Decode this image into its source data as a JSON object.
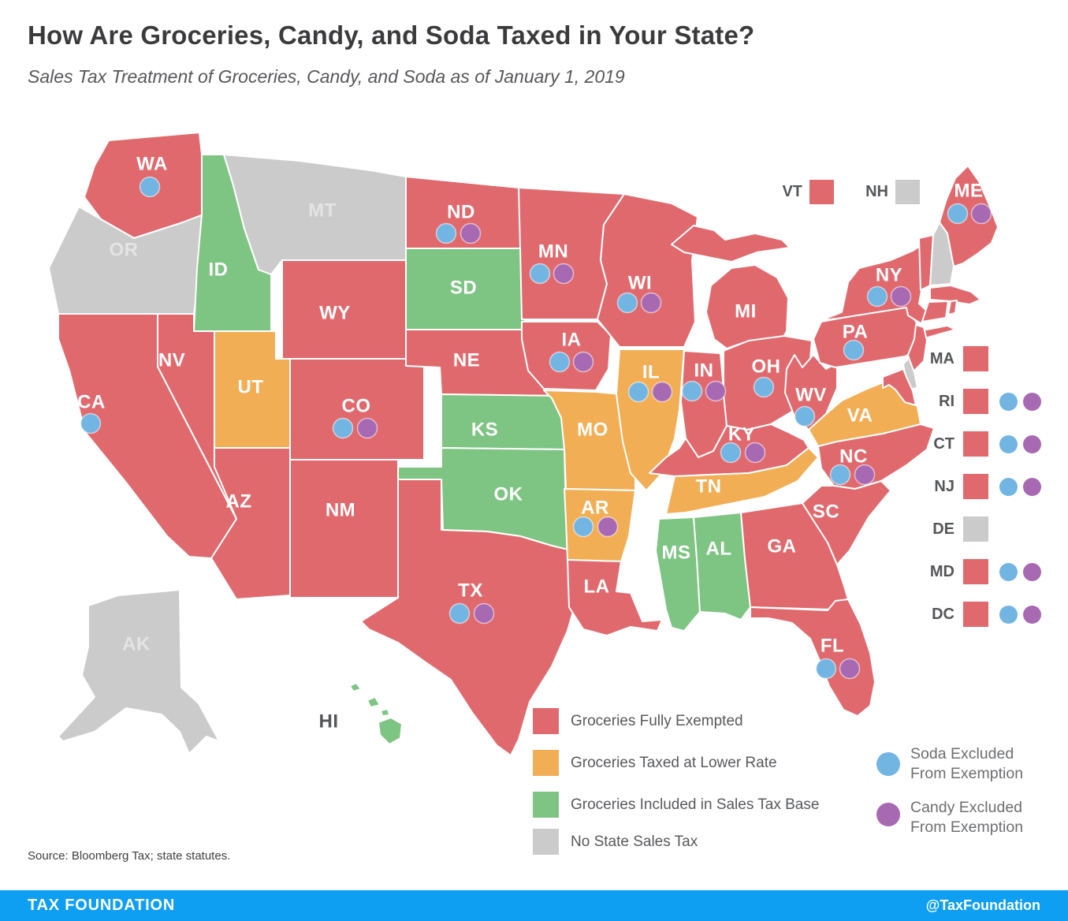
{
  "title": "How Are Groceries, Candy, and Soda Taxed in Your State?",
  "subtitle": "Sales Tax Treatment of Groceries, Candy, and Soda as of January 1, 2019",
  "colors": {
    "exempt": "#e0696e",
    "lower_rate": "#f2ae55",
    "included": "#7ec483",
    "no_tax": "#cbcbcb",
    "soda": "#72b5e3",
    "candy": "#a869b3",
    "footer_bg": "#0e9ef2"
  },
  "map": {
    "states": [
      {
        "abbr": "WA",
        "category": "exempt",
        "dots": [
          "soda"
        ]
      },
      {
        "abbr": "OR",
        "category": "no_tax",
        "dots": []
      },
      {
        "abbr": "CA",
        "category": "exempt",
        "dots": [
          "soda"
        ]
      },
      {
        "abbr": "NV",
        "category": "exempt",
        "dots": []
      },
      {
        "abbr": "ID",
        "category": "included",
        "dots": []
      },
      {
        "abbr": "MT",
        "category": "no_tax",
        "dots": []
      },
      {
        "abbr": "WY",
        "category": "exempt",
        "dots": []
      },
      {
        "abbr": "UT",
        "category": "lower_rate",
        "dots": []
      },
      {
        "abbr": "CO",
        "category": "exempt",
        "dots": [
          "soda",
          "candy"
        ]
      },
      {
        "abbr": "AZ",
        "category": "exempt",
        "dots": []
      },
      {
        "abbr": "NM",
        "category": "exempt",
        "dots": []
      },
      {
        "abbr": "ND",
        "category": "exempt",
        "dots": [
          "soda",
          "candy"
        ]
      },
      {
        "abbr": "SD",
        "category": "included",
        "dots": []
      },
      {
        "abbr": "NE",
        "category": "exempt",
        "dots": []
      },
      {
        "abbr": "KS",
        "category": "included",
        "dots": []
      },
      {
        "abbr": "OK",
        "category": "included",
        "dots": []
      },
      {
        "abbr": "TX",
        "category": "exempt",
        "dots": [
          "soda",
          "candy"
        ]
      },
      {
        "abbr": "MN",
        "category": "exempt",
        "dots": [
          "soda",
          "candy"
        ]
      },
      {
        "abbr": "IA",
        "category": "exempt",
        "dots": [
          "soda",
          "candy"
        ]
      },
      {
        "abbr": "MO",
        "category": "lower_rate",
        "dots": []
      },
      {
        "abbr": "AR",
        "category": "lower_rate",
        "dots": [
          "soda",
          "candy"
        ]
      },
      {
        "abbr": "LA",
        "category": "exempt",
        "dots": []
      },
      {
        "abbr": "WI",
        "category": "exempt",
        "dots": [
          "soda",
          "candy"
        ]
      },
      {
        "abbr": "IL",
        "category": "lower_rate",
        "dots": [
          "soda",
          "candy"
        ]
      },
      {
        "abbr": "MI",
        "category": "exempt",
        "dots": []
      },
      {
        "abbr": "IN",
        "category": "exempt",
        "dots": [
          "soda",
          "candy"
        ]
      },
      {
        "abbr": "OH",
        "category": "exempt",
        "dots": [
          "soda"
        ]
      },
      {
        "abbr": "KY",
        "category": "exempt",
        "dots": [
          "soda",
          "candy"
        ]
      },
      {
        "abbr": "TN",
        "category": "lower_rate",
        "dots": []
      },
      {
        "abbr": "MS",
        "category": "included",
        "dots": []
      },
      {
        "abbr": "AL",
        "category": "included",
        "dots": []
      },
      {
        "abbr": "GA",
        "category": "exempt",
        "dots": []
      },
      {
        "abbr": "WV",
        "category": "exempt",
        "dots": [
          "soda"
        ]
      },
      {
        "abbr": "VA",
        "category": "lower_rate",
        "dots": []
      },
      {
        "abbr": "NC",
        "category": "exempt",
        "dots": [
          "soda",
          "candy"
        ]
      },
      {
        "abbr": "SC",
        "category": "exempt",
        "dots": []
      },
      {
        "abbr": "FL",
        "category": "exempt",
        "dots": [
          "soda",
          "candy"
        ]
      },
      {
        "abbr": "PA",
        "category": "exempt",
        "dots": [
          "soda"
        ]
      },
      {
        "abbr": "NY",
        "category": "exempt",
        "dots": [
          "soda",
          "candy"
        ]
      },
      {
        "abbr": "VT",
        "category": "exempt",
        "dots": []
      },
      {
        "abbr": "NH",
        "category": "no_tax",
        "dots": []
      },
      {
        "abbr": "ME",
        "category": "exempt",
        "dots": [
          "soda",
          "candy"
        ]
      },
      {
        "abbr": "MA",
        "category": "exempt",
        "dots": []
      },
      {
        "abbr": "CT",
        "category": "exempt",
        "dots": []
      },
      {
        "abbr": "RI",
        "category": "exempt",
        "dots": []
      },
      {
        "abbr": "NJ",
        "category": "exempt",
        "dots": []
      },
      {
        "abbr": "DE",
        "category": "no_tax",
        "dots": []
      },
      {
        "abbr": "MD",
        "category": "exempt",
        "dots": []
      },
      {
        "abbr": "AK",
        "category": "no_tax",
        "dots": []
      },
      {
        "abbr": "HI",
        "category": "included",
        "dots": []
      }
    ]
  },
  "mini_legend": [
    {
      "abbr": "VT",
      "category": "exempt"
    },
    {
      "abbr": "NH",
      "category": "no_tax"
    }
  ],
  "east_legend": [
    {
      "abbr": "MA",
      "category": "exempt",
      "dots": []
    },
    {
      "abbr": "RI",
      "category": "exempt",
      "dots": [
        "soda",
        "candy"
      ]
    },
    {
      "abbr": "CT",
      "category": "exempt",
      "dots": [
        "soda",
        "candy"
      ]
    },
    {
      "abbr": "NJ",
      "category": "exempt",
      "dots": [
        "soda",
        "candy"
      ]
    },
    {
      "abbr": "DE",
      "category": "no_tax",
      "dots": []
    },
    {
      "abbr": "MD",
      "category": "exempt",
      "dots": [
        "soda",
        "candy"
      ]
    },
    {
      "abbr": "DC",
      "category": "exempt",
      "dots": [
        "soda",
        "candy"
      ]
    }
  ],
  "legend": {
    "categories": [
      {
        "category": "exempt",
        "label": "Groceries Fully Exempted"
      },
      {
        "category": "lower_rate",
        "label": "Groceries Taxed at Lower Rate"
      },
      {
        "category": "included",
        "label": "Groceries Included in Sales Tax Base"
      },
      {
        "category": "no_tax",
        "label": "No State Sales Tax"
      }
    ],
    "dot_types": [
      {
        "type": "soda",
        "line1": "Soda Excluded",
        "line2": "From Exemption"
      },
      {
        "type": "candy",
        "line1": "Candy Excluded",
        "line2": "From Exemption"
      }
    ]
  },
  "source": "Source: Bloomberg Tax; state statutes.",
  "footer": {
    "brand": "TAX FOUNDATION",
    "handle": "@TaxFoundation"
  }
}
